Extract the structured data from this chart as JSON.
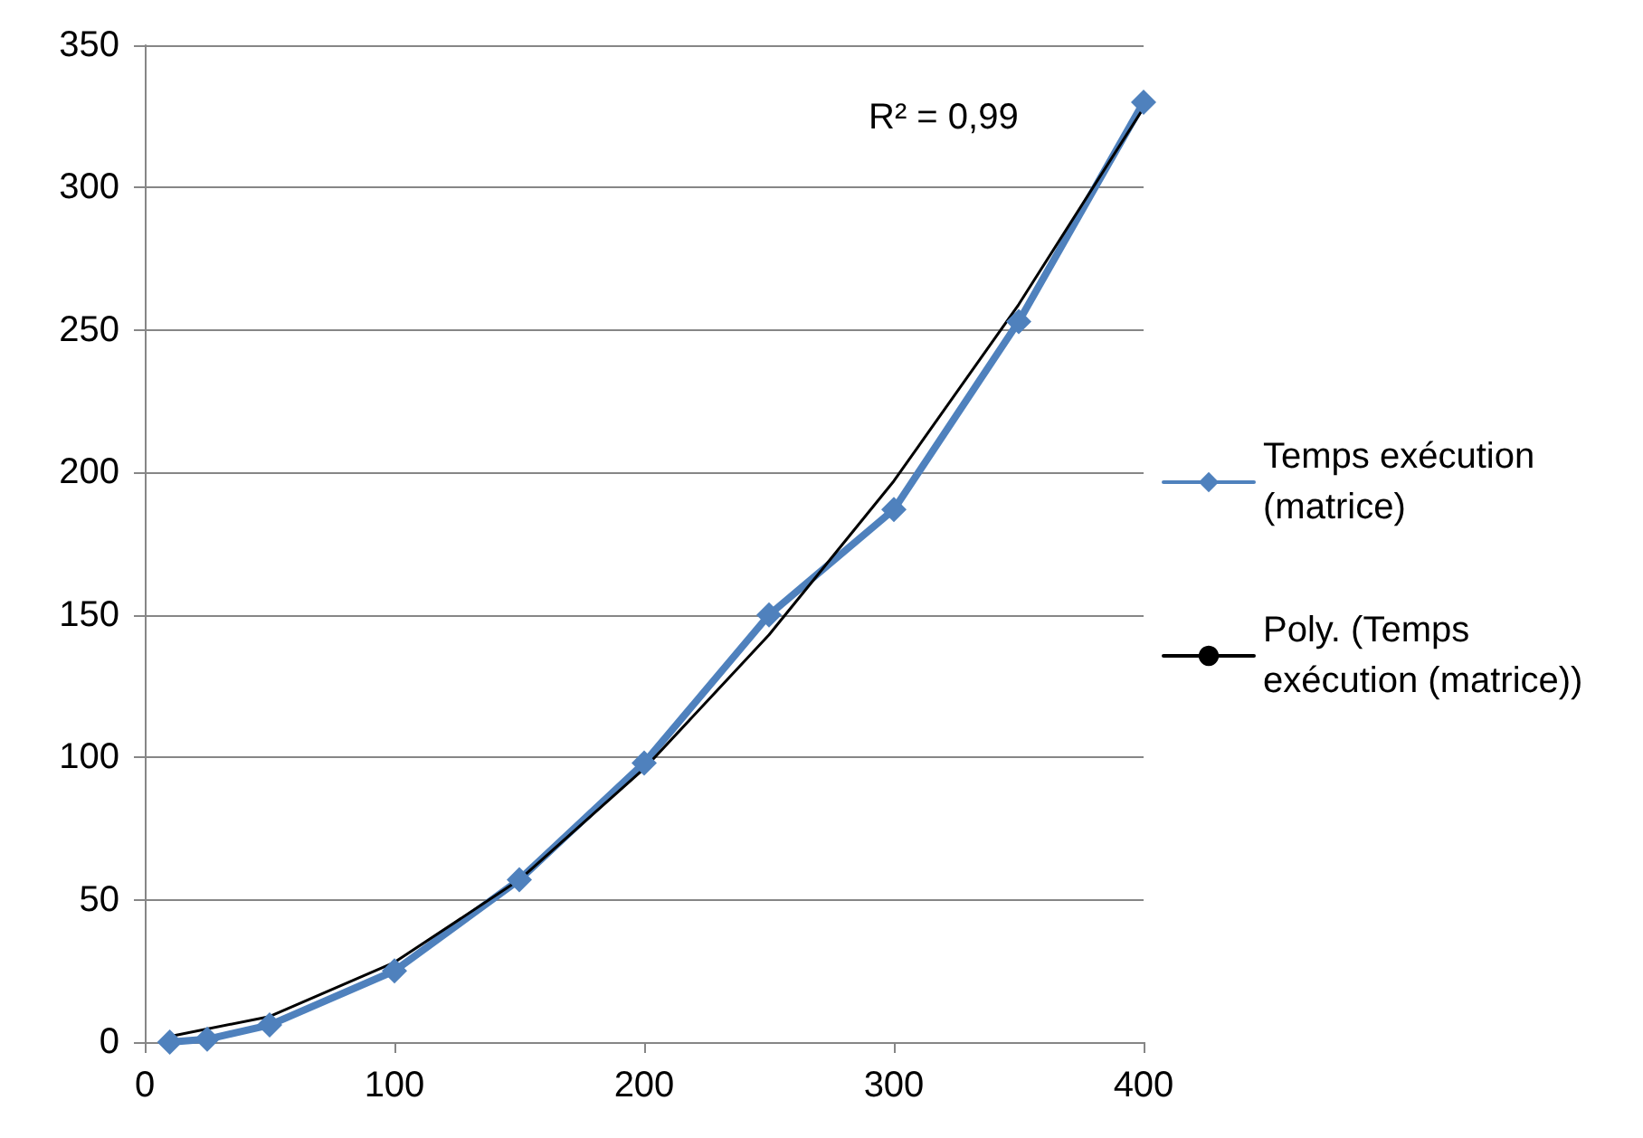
{
  "chart_data": {
    "type": "line",
    "series": [
      {
        "name": "Temps exécution (matrice)",
        "color": "#4f81bd",
        "marker": "diamond",
        "x": [
          10,
          25,
          50,
          100,
          150,
          200,
          250,
          300,
          350,
          400
        ],
        "values": [
          0,
          1,
          6,
          25,
          57,
          98,
          150,
          187,
          253,
          330
        ]
      },
      {
        "name": "Poly. (Temps exécution (matrice))",
        "color": "#000000",
        "marker": "none",
        "x": [
          10,
          50,
          100,
          150,
          200,
          250,
          300,
          350,
          400
        ],
        "values": [
          2,
          9,
          28,
          57,
          96,
          143,
          197,
          259,
          328
        ]
      }
    ],
    "xlim": [
      0,
      400
    ],
    "xticks": [
      0,
      100,
      200,
      300,
      400
    ],
    "ylim": [
      0,
      350
    ],
    "yticks": [
      0,
      50,
      100,
      150,
      200,
      250,
      300,
      350
    ],
    "grid": "y",
    "legend": "right",
    "annotations": [
      "R² = 0,99"
    ]
  }
}
